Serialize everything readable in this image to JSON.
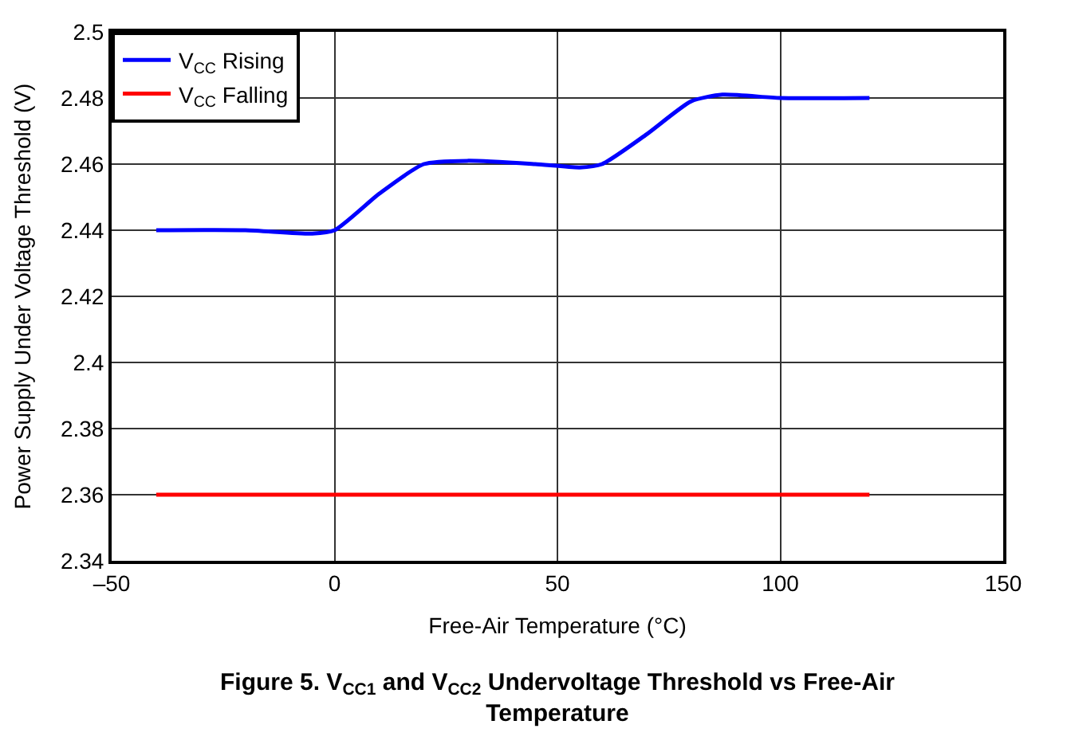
{
  "chart_data": {
    "type": "line",
    "title": "Figure 5. V$_{CC1}$ and V$_{CC2}$ Undervoltage Threshold vs Free-Air Temperature",
    "xlabel": "Free-Air Temperature (°C)",
    "ylabel": "Power Supply Under Voltage Threshold (V)",
    "xlim": [
      -50,
      150
    ],
    "xticks": [
      {
        "value": -50,
        "label": "–50"
      },
      0,
      50,
      100,
      150
    ],
    "ylim": [
      2.34,
      2.5
    ],
    "yticks": [
      2.34,
      2.36,
      2.38,
      2.4,
      2.42,
      2.44,
      2.46,
      2.48,
      2.5
    ],
    "grid": true,
    "legend": "top left",
    "line_style": "solid",
    "series": [
      {
        "name": "V$_{CC}$ Rising",
        "color": "#0000ff",
        "x": [
          -40,
          -20,
          -5,
          0,
          10,
          20,
          30,
          45,
          55,
          60,
          70,
          80,
          87,
          100,
          120
        ],
        "values": [
          2.44,
          2.44,
          2.439,
          2.44,
          2.451,
          2.46,
          2.461,
          2.46,
          2.459,
          2.46,
          2.469,
          2.479,
          2.481,
          2.48,
          2.48
        ]
      },
      {
        "name": "V$_{CC}$ Falling",
        "color": "#ff0000",
        "x": [
          -40,
          120
        ],
        "values": [
          2.36,
          2.36
        ]
      }
    ]
  }
}
